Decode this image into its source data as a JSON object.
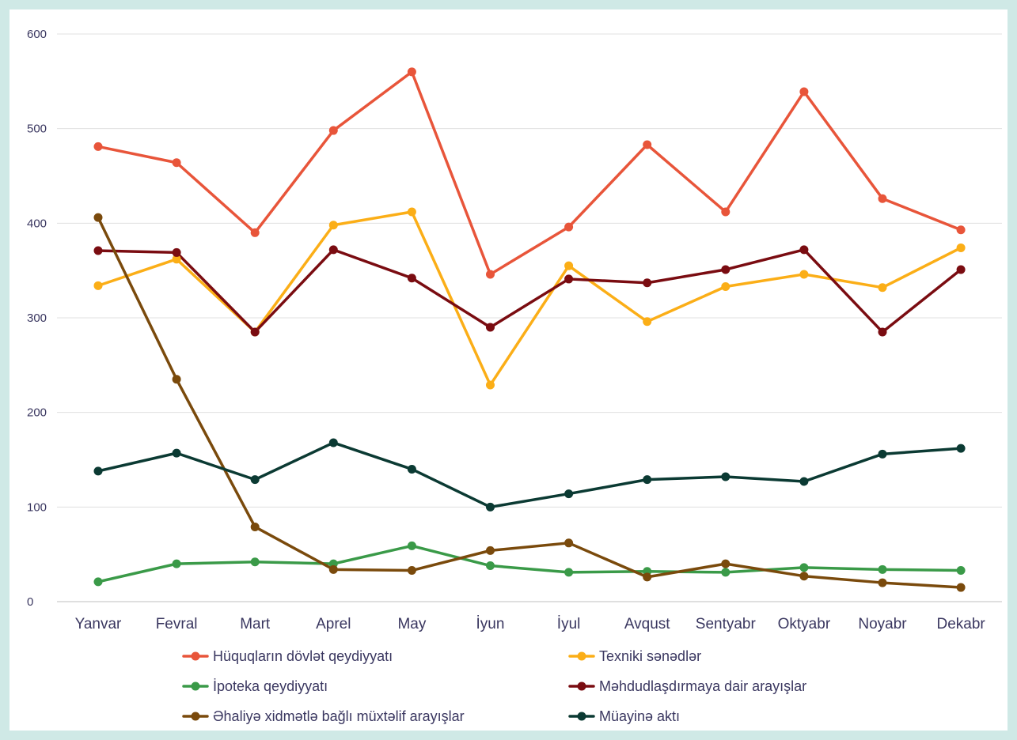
{
  "chart_data": {
    "type": "line",
    "title": "",
    "xlabel": "",
    "ylabel": "",
    "ylim": [
      0,
      600
    ],
    "yticks": [
      0,
      100,
      200,
      300,
      400,
      500,
      600
    ],
    "grid": true,
    "legend_position": "bottom",
    "categories": [
      "Yanvar",
      "Fevral",
      "Mart",
      "Aprel",
      "May",
      "İyun",
      "İyul",
      "Avqust",
      "Sentyabr",
      "Oktyabr",
      "Noyabr",
      "Dekabr"
    ],
    "series": [
      {
        "name": "Hüquqların dövlət qeydiyyatı",
        "color": "#e8553a",
        "values": [
          481,
          464,
          390,
          498,
          560,
          346,
          396,
          483,
          412,
          539,
          426,
          393
        ]
      },
      {
        "name": "Texniki sənədlər",
        "color": "#fbae17",
        "values": [
          334,
          362,
          285,
          398,
          412,
          229,
          355,
          296,
          333,
          346,
          332,
          374
        ]
      },
      {
        "name": "İpoteka qeydiyyatı",
        "color": "#3a9a48",
        "values": [
          21,
          40,
          42,
          40,
          59,
          38,
          31,
          32,
          31,
          36,
          34,
          33
        ]
      },
      {
        "name": "Məhdudlaşdırmaya dair arayışlar",
        "color": "#7a0c11",
        "values": [
          371,
          369,
          285,
          372,
          342,
          290,
          341,
          337,
          351,
          372,
          285,
          351
        ]
      },
      {
        "name": "Əhaliyə xidmətlə bağlı müxtəlif arayışlar",
        "color": "#7a4a0c",
        "values": [
          406,
          235,
          79,
          34,
          33,
          54,
          62,
          26,
          40,
          27,
          20,
          15
        ]
      },
      {
        "name": "Müayinə aktı",
        "color": "#0b3a33",
        "values": [
          138,
          157,
          129,
          168,
          140,
          100,
          114,
          129,
          132,
          127,
          156,
          162
        ]
      }
    ]
  }
}
